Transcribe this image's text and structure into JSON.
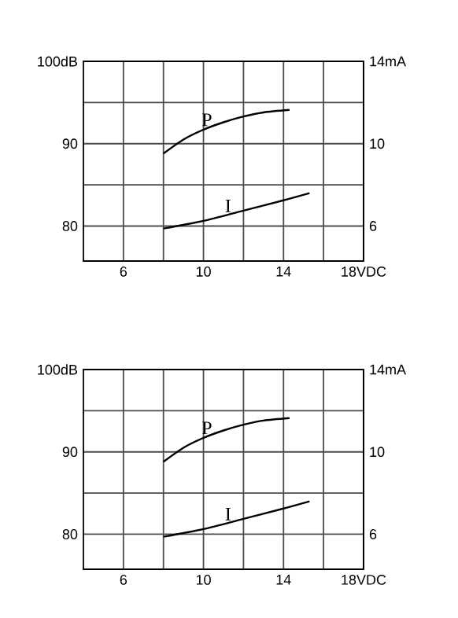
{
  "chart_data": [
    {
      "type": "line",
      "x": [
        8,
        9,
        10,
        11,
        12,
        13,
        14.3
      ],
      "xlim": [
        4,
        18
      ],
      "xticks": [
        6,
        {
          "value": 8,
          "label": null
        },
        10,
        {
          "value": 12,
          "label": null
        },
        14,
        {
          "value": 16,
          "label": null
        },
        {
          "value": 18,
          "label": "18VDC"
        }
      ],
      "ylim": [
        75.75,
        100
      ],
      "yticks": [
        80,
        {
          "value": 85,
          "label": null
        },
        90,
        {
          "value": 95,
          "label": null
        },
        {
          "value": 100,
          "label": "100dB"
        }
      ],
      "y2lim": [
        4.3,
        14
      ],
      "y2ticks": [
        6,
        10,
        {
          "value": 14,
          "label": "14mA"
        }
      ],
      "grid": true,
      "series": [
        {
          "name": "P",
          "color": "#000000",
          "values": [
            88.8,
            90.5,
            91.7,
            92.6,
            93.3,
            93.8,
            94.1
          ]
        },
        {
          "name": "I",
          "color": "#000000",
          "axis": "y2",
          "x": [
            8,
            10,
            12,
            14,
            15.3
          ],
          "values": [
            5.88,
            6.25,
            6.75,
            7.25,
            7.6
          ]
        }
      ]
    },
    {
      "type": "line",
      "x": [
        8,
        9,
        10,
        11,
        12,
        13,
        14.3
      ],
      "xlim": [
        4,
        18
      ],
      "xticks": [
        6,
        {
          "value": 8,
          "label": null
        },
        10,
        {
          "value": 12,
          "label": null
        },
        14,
        {
          "value": 16,
          "label": null
        },
        {
          "value": 18,
          "label": "18VDC"
        }
      ],
      "ylim": [
        75.75,
        100
      ],
      "yticks": [
        80,
        {
          "value": 85,
          "label": null
        },
        90,
        {
          "value": 95,
          "label": null
        },
        {
          "value": 100,
          "label": "100dB"
        }
      ],
      "y2lim": [
        4.3,
        14
      ],
      "y2ticks": [
        6,
        10,
        {
          "value": 14,
          "label": "14mA"
        }
      ],
      "grid": true,
      "series": [
        {
          "name": "P",
          "color": "#000000",
          "values": [
            88.8,
            90.5,
            91.7,
            92.6,
            93.3,
            93.8,
            94.1
          ]
        },
        {
          "name": "I",
          "color": "#000000",
          "axis": "y2",
          "x": [
            8,
            10,
            12,
            14,
            15.3
          ],
          "values": [
            5.88,
            6.25,
            6.75,
            7.25,
            7.6
          ]
        }
      ]
    }
  ]
}
